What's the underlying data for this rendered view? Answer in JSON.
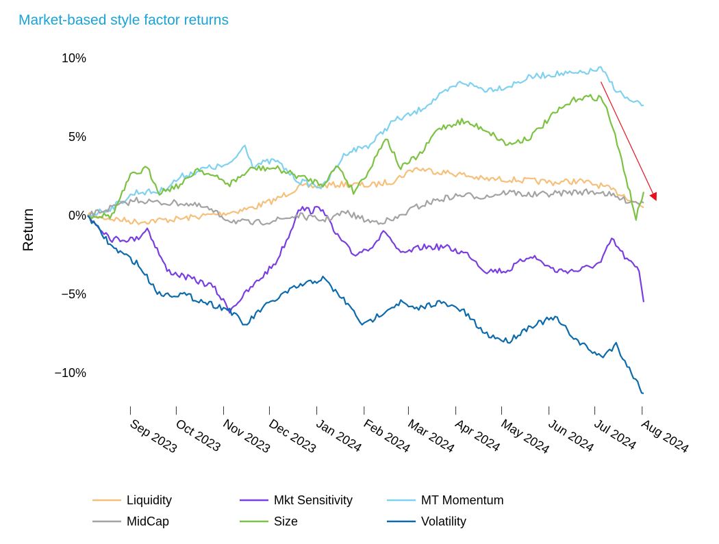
{
  "chart_data": {
    "type": "line",
    "title": "Market-based style factor returns",
    "xlabel": "",
    "ylabel": "Return",
    "x_ticks": [
      "Sep 2023",
      "Oct 2023",
      "Nov 2023",
      "Dec 2023",
      "Jan 2024",
      "Feb 2024",
      "Mar 2024",
      "Apr 2024",
      "May 2024",
      "Jun 2024",
      "Jul 2024",
      "Aug 2024"
    ],
    "x_tick_dates": [
      "2023-09-01",
      "2023-10-01",
      "2023-11-01",
      "2023-12-01",
      "2024-01-01",
      "2024-02-01",
      "2024-03-01",
      "2024-04-01",
      "2024-05-01",
      "2024-06-01",
      "2024-07-01",
      "2024-08-01"
    ],
    "x_range": [
      "2023-08-04",
      "2024-08-02"
    ],
    "y_ticks": [
      {
        "value": 10,
        "label": "10%"
      },
      {
        "value": 5,
        "label": "5%"
      },
      {
        "value": 0,
        "label": "0%"
      },
      {
        "value": -5,
        "label": "−5%"
      },
      {
        "value": -10,
        "label": "−10%"
      }
    ],
    "ylim": [
      -12.0,
      10.5
    ],
    "grid": false,
    "legend_position": "bottom",
    "series": [
      {
        "name": "Liquidity",
        "color": "#f6bf7a",
        "points": [
          [
            "2023-08-04",
            0
          ],
          [
            "2023-08-20",
            -0.2
          ],
          [
            "2023-09-05",
            -0.4
          ],
          [
            "2023-09-20",
            -0.3
          ],
          [
            "2023-10-05",
            -0.2
          ],
          [
            "2023-10-20",
            0.0
          ],
          [
            "2023-11-05",
            0.2
          ],
          [
            "2023-11-20",
            0.5
          ],
          [
            "2023-12-05",
            1.0
          ],
          [
            "2023-12-20",
            1.8
          ],
          [
            "2024-01-05",
            1.9
          ],
          [
            "2024-01-20",
            2.0
          ],
          [
            "2024-02-05",
            1.9
          ],
          [
            "2024-02-20",
            2.2
          ],
          [
            "2024-03-05",
            3.0
          ],
          [
            "2024-03-20",
            2.8
          ],
          [
            "2024-04-05",
            2.6
          ],
          [
            "2024-04-20",
            2.3
          ],
          [
            "2024-05-05",
            2.3
          ],
          [
            "2024-05-20",
            2.2
          ],
          [
            "2024-06-05",
            2.1
          ],
          [
            "2024-06-20",
            2.2
          ],
          [
            "2024-07-05",
            1.9
          ],
          [
            "2024-07-20",
            1.3
          ],
          [
            "2024-08-02",
            0.5
          ]
        ]
      },
      {
        "name": "Mkt Sensitivity",
        "color": "#7a3de0",
        "points": [
          [
            "2023-08-04",
            0
          ],
          [
            "2023-08-20",
            -1.5
          ],
          [
            "2023-09-05",
            -1.5
          ],
          [
            "2023-09-12",
            -0.8
          ],
          [
            "2023-09-25",
            -3.5
          ],
          [
            "2023-10-10",
            -4.0
          ],
          [
            "2023-10-25",
            -4.5
          ],
          [
            "2023-11-05",
            -6.0
          ],
          [
            "2023-11-20",
            -4.5
          ],
          [
            "2023-12-05",
            -3.0
          ],
          [
            "2023-12-15",
            -1.0
          ],
          [
            "2023-12-20",
            0.5
          ],
          [
            "2023-12-28",
            0.3
          ],
          [
            "2024-01-05",
            0.5
          ],
          [
            "2024-01-12",
            -1.0
          ],
          [
            "2024-01-25",
            -2.5
          ],
          [
            "2024-02-05",
            -2.0
          ],
          [
            "2024-02-15",
            -1.0
          ],
          [
            "2024-02-25",
            -2.5
          ],
          [
            "2024-03-10",
            -2.0
          ],
          [
            "2024-03-25",
            -2.0
          ],
          [
            "2024-04-10",
            -2.5
          ],
          [
            "2024-04-20",
            -3.5
          ],
          [
            "2024-05-05",
            -3.5
          ],
          [
            "2024-05-20",
            -2.5
          ],
          [
            "2024-06-05",
            -3.5
          ],
          [
            "2024-06-20",
            -3.5
          ],
          [
            "2024-07-05",
            -3.0
          ],
          [
            "2024-07-12",
            -1.5
          ],
          [
            "2024-07-22",
            -2.8
          ],
          [
            "2024-07-30",
            -3.5
          ],
          [
            "2024-08-02",
            -5.5
          ]
        ]
      },
      {
        "name": "MT Momentum",
        "color": "#7fd1f0",
        "points": [
          [
            "2023-08-04",
            0
          ],
          [
            "2023-08-20",
            0.5
          ],
          [
            "2023-09-05",
            1.5
          ],
          [
            "2023-09-20",
            1.5
          ],
          [
            "2023-10-05",
            2.5
          ],
          [
            "2023-10-20",
            3.0
          ],
          [
            "2023-11-05",
            3.2
          ],
          [
            "2023-11-15",
            4.5
          ],
          [
            "2023-11-20",
            3.2
          ],
          [
            "2023-12-05",
            3.5
          ],
          [
            "2023-12-20",
            2.2
          ],
          [
            "2024-01-05",
            1.8
          ],
          [
            "2024-01-20",
            4.0
          ],
          [
            "2024-02-05",
            4.5
          ],
          [
            "2024-02-20",
            6.0
          ],
          [
            "2024-03-05",
            6.5
          ],
          [
            "2024-03-20",
            7.5
          ],
          [
            "2024-04-05",
            8.5
          ],
          [
            "2024-04-20",
            8.0
          ],
          [
            "2024-05-05",
            8.2
          ],
          [
            "2024-05-20",
            8.8
          ],
          [
            "2024-06-05",
            9.0
          ],
          [
            "2024-06-20",
            9.0
          ],
          [
            "2024-07-05",
            9.3
          ],
          [
            "2024-07-15",
            8.0
          ],
          [
            "2024-07-25",
            7.2
          ],
          [
            "2024-08-02",
            7.0
          ]
        ]
      },
      {
        "name": "MidCap",
        "color": "#a3a3a3",
        "points": [
          [
            "2023-08-04",
            0
          ],
          [
            "2023-08-20",
            0.5
          ],
          [
            "2023-09-05",
            1.0
          ],
          [
            "2023-09-20",
            0.8
          ],
          [
            "2023-10-05",
            0.8
          ],
          [
            "2023-10-20",
            0.5
          ],
          [
            "2023-11-05",
            -0.3
          ],
          [
            "2023-11-20",
            -0.5
          ],
          [
            "2023-12-05",
            -0.3
          ],
          [
            "2023-12-20",
            0.0
          ],
          [
            "2024-01-05",
            -0.3
          ],
          [
            "2024-01-20",
            0.2
          ],
          [
            "2024-02-05",
            -0.4
          ],
          [
            "2024-02-20",
            -0.3
          ],
          [
            "2024-03-05",
            0.5
          ],
          [
            "2024-03-20",
            1.0
          ],
          [
            "2024-04-05",
            1.3
          ],
          [
            "2024-04-20",
            1.2
          ],
          [
            "2024-05-05",
            1.5
          ],
          [
            "2024-05-20",
            1.3
          ],
          [
            "2024-06-05",
            1.4
          ],
          [
            "2024-06-20",
            1.5
          ],
          [
            "2024-07-05",
            1.5
          ],
          [
            "2024-07-20",
            1.0
          ],
          [
            "2024-08-02",
            0.8
          ]
        ]
      },
      {
        "name": "Size",
        "color": "#7cc242",
        "points": [
          [
            "2023-08-04",
            0
          ],
          [
            "2023-08-20",
            0.0
          ],
          [
            "2023-09-01",
            2.5
          ],
          [
            "2023-09-12",
            3.0
          ],
          [
            "2023-09-20",
            1.5
          ],
          [
            "2023-10-05",
            2.0
          ],
          [
            "2023-10-15",
            3.0
          ],
          [
            "2023-10-25",
            2.5
          ],
          [
            "2023-11-05",
            2.0
          ],
          [
            "2023-11-20",
            3.0
          ],
          [
            "2023-12-05",
            3.0
          ],
          [
            "2023-12-20",
            2.5
          ],
          [
            "2024-01-05",
            2.0
          ],
          [
            "2024-01-15",
            3.2
          ],
          [
            "2024-01-25",
            1.5
          ],
          [
            "2024-02-05",
            3.0
          ],
          [
            "2024-02-15",
            5.0
          ],
          [
            "2024-02-25",
            3.0
          ],
          [
            "2024-03-10",
            4.0
          ],
          [
            "2024-03-20",
            5.5
          ],
          [
            "2024-04-05",
            6.0
          ],
          [
            "2024-04-20",
            5.5
          ],
          [
            "2024-05-05",
            4.5
          ],
          [
            "2024-05-20",
            5.0
          ],
          [
            "2024-06-05",
            6.5
          ],
          [
            "2024-06-20",
            7.5
          ],
          [
            "2024-07-05",
            7.5
          ],
          [
            "2024-07-10",
            6.5
          ],
          [
            "2024-07-20",
            3.0
          ],
          [
            "2024-07-28",
            -0.2
          ],
          [
            "2024-08-02",
            1.5
          ]
        ]
      },
      {
        "name": "Volatility",
        "color": "#0b6aac",
        "points": [
          [
            "2023-08-04",
            0
          ],
          [
            "2023-08-20",
            -2.0
          ],
          [
            "2023-09-05",
            -3.0
          ],
          [
            "2023-09-20",
            -5.0
          ],
          [
            "2023-10-05",
            -5.0
          ],
          [
            "2023-10-20",
            -5.5
          ],
          [
            "2023-11-05",
            -6.0
          ],
          [
            "2023-11-15",
            -7.0
          ],
          [
            "2023-11-25",
            -6.0
          ],
          [
            "2023-12-10",
            -5.0
          ],
          [
            "2023-12-20",
            -4.5
          ],
          [
            "2024-01-05",
            -4.0
          ],
          [
            "2024-01-20",
            -5.5
          ],
          [
            "2024-02-01",
            -7.0
          ],
          [
            "2024-02-15",
            -6.0
          ],
          [
            "2024-02-25",
            -5.5
          ],
          [
            "2024-03-05",
            -6.0
          ],
          [
            "2024-03-20",
            -5.5
          ],
          [
            "2024-04-05",
            -6.0
          ],
          [
            "2024-04-20",
            -7.5
          ],
          [
            "2024-05-05",
            -8.0
          ],
          [
            "2024-05-20",
            -7.0
          ],
          [
            "2024-06-05",
            -6.5
          ],
          [
            "2024-06-20",
            -8.0
          ],
          [
            "2024-07-05",
            -9.0
          ],
          [
            "2024-07-15",
            -8.2
          ],
          [
            "2024-07-25",
            -10.0
          ],
          [
            "2024-08-02",
            -11.3
          ]
        ]
      }
    ],
    "annotation": {
      "type": "arrow",
      "color": "#e8101c",
      "from": [
        "2024-07-05",
        8.5
      ],
      "to": [
        "2024-08-10",
        1.0
      ]
    }
  }
}
